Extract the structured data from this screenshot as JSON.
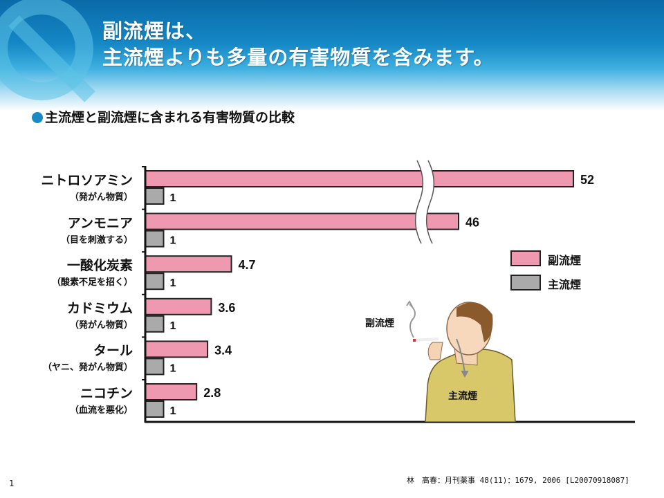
{
  "header": {
    "title_line1": "副流煙は、",
    "title_line2": "主流煙よりも多量の有害物質を含みます。"
  },
  "subtitle": "主流煙と副流煙に含まれる有害物質の比較",
  "chart_data": {
    "type": "bar",
    "orientation": "horizontal",
    "axis_break": true,
    "categories": [
      {
        "name": "ニトロソアミン",
        "note": "（発がん物質）"
      },
      {
        "name": "アンモニア",
        "note": "（目を刺激する）"
      },
      {
        "name": "一酸化炭素",
        "note": "（酸素不足を招く）"
      },
      {
        "name": "カドミウム",
        "note": "（発がん物質）"
      },
      {
        "name": "タール",
        "note": "（ヤニ、発がん物質）"
      },
      {
        "name": "ニコチン",
        "note": "（血流を悪化）"
      }
    ],
    "series": [
      {
        "name": "副流煙",
        "color": "#ee99b0",
        "values": [
          52,
          46,
          4.7,
          3.6,
          3.4,
          2.8
        ],
        "labels": [
          "52",
          "46",
          "4.7",
          "3.6",
          "3.4",
          "2.8"
        ]
      },
      {
        "name": "主流煙",
        "color": "#aaaaaa",
        "values": [
          1,
          1,
          1,
          1,
          1,
          1
        ],
        "labels": [
          "1",
          "1",
          "1",
          "1",
          "1",
          "1"
        ]
      }
    ],
    "legend": "right",
    "grid": false
  },
  "illustration": {
    "side_smoke_label": "副流煙",
    "main_smoke_label": "主流煙"
  },
  "citation": "林　高春：月刊薬事 48(11)：1679, 2006 [L20070918087]",
  "page_number": "1"
}
